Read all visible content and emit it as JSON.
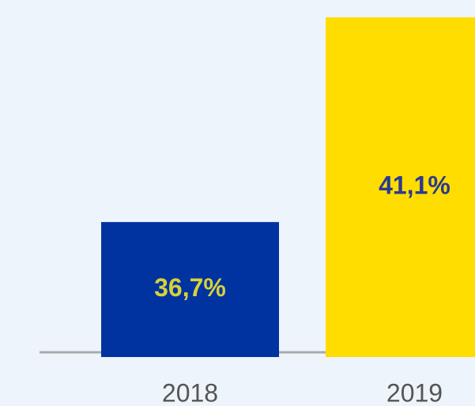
{
  "chart_data": {
    "type": "bar",
    "categories": [
      "2018",
      "2019"
    ],
    "values": [
      36.7,
      41.1
    ],
    "value_labels": [
      "36,7%",
      "41,1%"
    ],
    "colors": [
      "#0033a0",
      "#ffdd00"
    ],
    "label_colors": [
      "#d6d23a",
      "#2b3990"
    ],
    "ylim": [
      33.8,
      41.2
    ]
  }
}
